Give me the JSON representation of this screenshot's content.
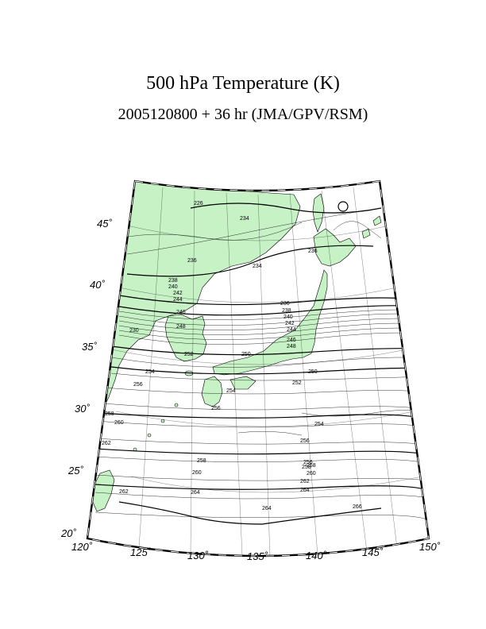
{
  "title": "500 hPa Temperature (K)",
  "subtitle": "2005120800 + 36 hr (JMA/GPV/RSM)",
  "map": {
    "projection": "conic",
    "lon_ticks": [
      "120˚",
      "125˚",
      "130˚",
      "135˚",
      "140˚",
      "145˚",
      "150˚"
    ],
    "lat_ticks": [
      "20˚",
      "25˚",
      "30˚",
      "35˚",
      "40˚",
      "45˚"
    ],
    "land_color": "#c6f2c6",
    "coast_color": "#000000",
    "contour_color": "#000000"
  },
  "contour_labels": [
    "226",
    "234",
    "236",
    "234",
    "236",
    "238",
    "240",
    "242",
    "244",
    "246",
    "248",
    "230",
    "252",
    "254",
    "256",
    "236",
    "238",
    "240",
    "242",
    "244",
    "246",
    "248",
    "250",
    "250",
    "252",
    "254",
    "256",
    "258",
    "260",
    "262",
    "254",
    "258",
    "256",
    "258",
    "260",
    "262",
    "264",
    "266",
    "264",
    "256",
    "258",
    "260",
    "262",
    "264"
  ]
}
